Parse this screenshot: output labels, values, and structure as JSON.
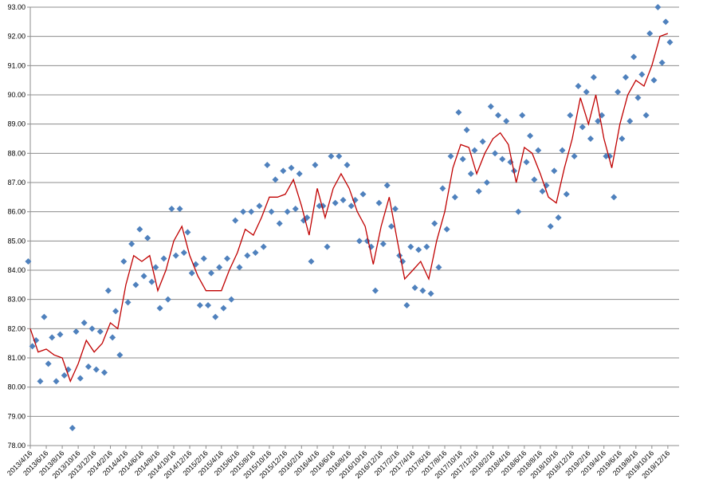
{
  "chart_data": {
    "type": "scatter",
    "ylim": [
      78,
      93
    ],
    "yticks": [
      {
        "value": 78,
        "label": "78.00"
      },
      {
        "value": 79,
        "label": "79.00"
      },
      {
        "value": 80,
        "label": "80.00"
      },
      {
        "value": 81,
        "label": "81.00"
      },
      {
        "value": 82,
        "label": "82.00"
      },
      {
        "value": 83,
        "label": "83.00"
      },
      {
        "value": 84,
        "label": "84.00"
      },
      {
        "value": 85,
        "label": "85.00"
      },
      {
        "value": 86,
        "label": "86.00"
      },
      {
        "value": 87,
        "label": "87.00"
      },
      {
        "value": 88,
        "label": "88.00"
      },
      {
        "value": 89,
        "label": "89.00"
      },
      {
        "value": 90,
        "label": "90.00"
      },
      {
        "value": 91,
        "label": "91.00"
      },
      {
        "value": 92,
        "label": "92.00"
      },
      {
        "value": 93,
        "label": "93.00"
      }
    ],
    "xlim": [
      "2013/4/16",
      "2020/1/28"
    ],
    "xticks": [
      "2013/4/16",
      "2013/6/16",
      "2013/8/16",
      "2013/10/16",
      "2013/12/16",
      "2014/2/16",
      "2014/4/16",
      "2014/6/16",
      "2014/8/16",
      "2014/10/16",
      "2014/12/16",
      "2015/2/16",
      "2015/4/16",
      "2015/6/16",
      "2015/8/16",
      "2015/10/16",
      "2015/12/16",
      "2016/2/16",
      "2016/4/16",
      "2016/6/16",
      "2016/8/16",
      "2016/10/16",
      "2016/12/16",
      "2017/2/16",
      "2017/4/16",
      "2017/6/16",
      "2017/8/16",
      "2017/10/16",
      "2017/12/16",
      "2018/2/16",
      "2018/4/16",
      "2018/6/16",
      "2018/8/16",
      "2018/10/16",
      "2018/12/16",
      "2019/2/16",
      "2019/4/16",
      "2019/6/16",
      "2019/8/16",
      "2019/10/16",
      "2019/12/16"
    ],
    "grid": true,
    "series": [
      {
        "type": "scatter",
        "color": "#4f81bd",
        "x": [
          "2013/4/8",
          "2013/4/24",
          "2013/5/8",
          "2013/5/24",
          "2013/6/8",
          "2013/6/24",
          "2013/7/8",
          "2013/7/24",
          "2013/8/8",
          "2013/8/24",
          "2013/9/8",
          "2013/9/24",
          "2013/10/8",
          "2013/10/24",
          "2013/11/8",
          "2013/11/24",
          "2013/12/8",
          "2013/12/24",
          "2014/1/8",
          "2014/1/24",
          "2014/2/8",
          "2014/2/24",
          "2014/3/8",
          "2014/3/24",
          "2014/4/8",
          "2014/4/24",
          "2014/5/8",
          "2014/5/24",
          "2014/6/8",
          "2014/6/24",
          "2014/7/8",
          "2014/7/24",
          "2014/8/8",
          "2014/8/24",
          "2014/9/8",
          "2014/9/24",
          "2014/10/8",
          "2014/10/24",
          "2014/11/8",
          "2014/11/24",
          "2014/12/8",
          "2014/12/24",
          "2015/1/8",
          "2015/1/24",
          "2015/2/8",
          "2015/2/24",
          "2015/3/8",
          "2015/3/24",
          "2015/4/8",
          "2015/4/24",
          "2015/5/8",
          "2015/5/24",
          "2015/6/8",
          "2015/6/24",
          "2015/7/8",
          "2015/7/24",
          "2015/8/8",
          "2015/8/24",
          "2015/9/8",
          "2015/9/24",
          "2015/10/8",
          "2015/10/24",
          "2015/11/8",
          "2015/11/24",
          "2015/12/8",
          "2015/12/24",
          "2016/1/8",
          "2016/1/24",
          "2016/2/8",
          "2016/2/24",
          "2016/3/8",
          "2016/3/24",
          "2016/4/8",
          "2016/4/24",
          "2016/5/8",
          "2016/5/24",
          "2016/6/8",
          "2016/6/24",
          "2016/7/8",
          "2016/7/24",
          "2016/8/8",
          "2016/8/24",
          "2016/9/8",
          "2016/9/24",
          "2016/10/8",
          "2016/10/24",
          "2016/11/8",
          "2016/11/24",
          "2016/12/8",
          "2016/12/24",
          "2017/1/8",
          "2017/1/24",
          "2017/2/8",
          "2017/2/24",
          "2017/3/8",
          "2017/3/24",
          "2017/4/8",
          "2017/4/24",
          "2017/5/8",
          "2017/5/24",
          "2017/6/8",
          "2017/6/24",
          "2017/7/8",
          "2017/7/24",
          "2017/8/8",
          "2017/8/24",
          "2017/9/8",
          "2017/9/24",
          "2017/10/8",
          "2017/10/24",
          "2017/11/8",
          "2017/11/24",
          "2017/12/8",
          "2017/12/24",
          "2018/1/8",
          "2018/1/24",
          "2018/2/8",
          "2018/2/24",
          "2018/3/8",
          "2018/3/24",
          "2018/4/8",
          "2018/4/24",
          "2018/5/8",
          "2018/5/24",
          "2018/6/8",
          "2018/6/24",
          "2018/7/8",
          "2018/7/24",
          "2018/8/8",
          "2018/8/24",
          "2018/9/8",
          "2018/9/24",
          "2018/10/8",
          "2018/10/24",
          "2018/11/8",
          "2018/11/24",
          "2018/12/8",
          "2018/12/24",
          "2019/1/8",
          "2019/1/24",
          "2019/2/8",
          "2019/2/24",
          "2019/3/8",
          "2019/3/24",
          "2019/4/8",
          "2019/4/24",
          "2019/5/8",
          "2019/5/24",
          "2019/6/8",
          "2019/6/24",
          "2019/7/8",
          "2019/7/24",
          "2019/8/8",
          "2019/8/24",
          "2019/9/8",
          "2019/9/24",
          "2019/10/8",
          "2019/10/24",
          "2019/11/8",
          "2019/11/24",
          "2019/12/8",
          "2019/12/24"
        ],
        "values": [
          84.3,
          81.4,
          81.6,
          80.2,
          82.4,
          80.8,
          81.7,
          80.2,
          81.8,
          80.4,
          80.6,
          78.6,
          81.9,
          80.3,
          82.2,
          80.7,
          82.0,
          80.6,
          81.9,
          80.5,
          83.3,
          81.7,
          82.6,
          81.1,
          84.3,
          82.9,
          84.9,
          83.5,
          85.4,
          83.8,
          85.1,
          83.6,
          84.1,
          82.7,
          84.4,
          83.0,
          86.1,
          84.5,
          86.1,
          84.6,
          85.3,
          83.9,
          84.2,
          82.8,
          84.4,
          82.8,
          83.9,
          82.4,
          84.1,
          82.7,
          84.4,
          83.0,
          85.7,
          84.1,
          86.0,
          84.5,
          86.0,
          84.6,
          86.2,
          84.8,
          87.6,
          86.0,
          87.1,
          85.6,
          87.4,
          86.0,
          87.5,
          86.1,
          87.3,
          85.7,
          85.8,
          84.3,
          87.6,
          86.2,
          86.2,
          84.8,
          87.9,
          86.3,
          87.9,
          86.4,
          87.6,
          86.2,
          86.4,
          85.0,
          86.6,
          85.0,
          84.8,
          83.3,
          86.3,
          84.9,
          86.9,
          85.5,
          86.1,
          84.5,
          84.3,
          82.8,
          84.8,
          83.4,
          84.7,
          83.3,
          84.8,
          83.2,
          85.6,
          84.1,
          86.8,
          85.4,
          87.9,
          86.5,
          89.4,
          87.8,
          88.8,
          87.3,
          88.1,
          86.7,
          88.4,
          87.0,
          89.6,
          88.0,
          89.3,
          87.8,
          89.1,
          87.7,
          87.4,
          86.0,
          89.3,
          87.7,
          88.6,
          87.1,
          88.1,
          86.7,
          86.9,
          85.5,
          87.4,
          85.8,
          88.1,
          86.6,
          89.3,
          87.9,
          90.3,
          88.9,
          90.1,
          88.5,
          90.6,
          89.1,
          89.3,
          87.9,
          87.9,
          86.5,
          90.1,
          88.5,
          90.6,
          89.1,
          91.3,
          89.9,
          90.7,
          89.3,
          92.1,
          90.5,
          93.0,
          91.1,
          92.5,
          91.8
        ]
      },
      {
        "type": "line",
        "color": "#c00000",
        "x": [
          "2013/4/16",
          "2013/5/16",
          "2013/6/16",
          "2013/7/16",
          "2013/8/16",
          "2013/9/16",
          "2013/10/16",
          "2013/11/16",
          "2013/12/16",
          "2014/1/16",
          "2014/2/16",
          "2014/3/16",
          "2014/4/16",
          "2014/5/16",
          "2014/6/16",
          "2014/7/16",
          "2014/8/16",
          "2014/9/16",
          "2014/10/16",
          "2014/11/16",
          "2014/12/16",
          "2015/1/16",
          "2015/2/16",
          "2015/3/16",
          "2015/4/16",
          "2015/5/16",
          "2015/6/16",
          "2015/7/16",
          "2015/8/16",
          "2015/9/16",
          "2015/10/16",
          "2015/11/16",
          "2015/12/16",
          "2016/1/16",
          "2016/2/16",
          "2016/3/16",
          "2016/4/16",
          "2016/5/16",
          "2016/6/16",
          "2016/7/16",
          "2016/8/16",
          "2016/9/16",
          "2016/10/16",
          "2016/11/16",
          "2016/12/16",
          "2017/1/16",
          "2017/2/16",
          "2017/3/16",
          "2017/4/16",
          "2017/5/16",
          "2017/6/16",
          "2017/7/16",
          "2017/8/16",
          "2017/9/16",
          "2017/10/16",
          "2017/11/16",
          "2017/12/16",
          "2018/1/16",
          "2018/2/16",
          "2018/3/16",
          "2018/4/16",
          "2018/5/16",
          "2018/6/16",
          "2018/7/16",
          "2018/8/16",
          "2018/9/16",
          "2018/10/16",
          "2018/11/16",
          "2018/12/16",
          "2019/1/16",
          "2019/2/16",
          "2019/3/16",
          "2019/4/16",
          "2019/5/16",
          "2019/6/16",
          "2019/7/16",
          "2019/8/16",
          "2019/9/16",
          "2019/10/16",
          "2019/11/16",
          "2019/12/16"
        ],
        "values": [
          82.0,
          81.2,
          81.3,
          81.1,
          81.0,
          80.2,
          80.8,
          81.6,
          81.2,
          81.5,
          82.2,
          82.0,
          83.5,
          84.5,
          84.3,
          84.5,
          83.3,
          84.0,
          85.0,
          85.5,
          84.5,
          83.8,
          83.3,
          83.3,
          83.3,
          84.0,
          84.6,
          85.4,
          85.2,
          85.8,
          86.5,
          86.5,
          86.6,
          87.1,
          86.2,
          85.2,
          86.8,
          85.8,
          86.8,
          87.3,
          86.8,
          86.0,
          85.5,
          84.2,
          85.5,
          86.5,
          85.0,
          83.7,
          84.0,
          84.3,
          83.7,
          85.0,
          86.0,
          87.5,
          88.3,
          88.2,
          87.3,
          88.0,
          88.5,
          88.7,
          88.3,
          87.0,
          88.2,
          88.0,
          87.3,
          86.5,
          86.3,
          87.5,
          88.5,
          89.9,
          89.0,
          90.0,
          88.5,
          87.5,
          89.0,
          90.0,
          90.5,
          90.3,
          91.0,
          92.0,
          92.1
        ]
      }
    ]
  }
}
